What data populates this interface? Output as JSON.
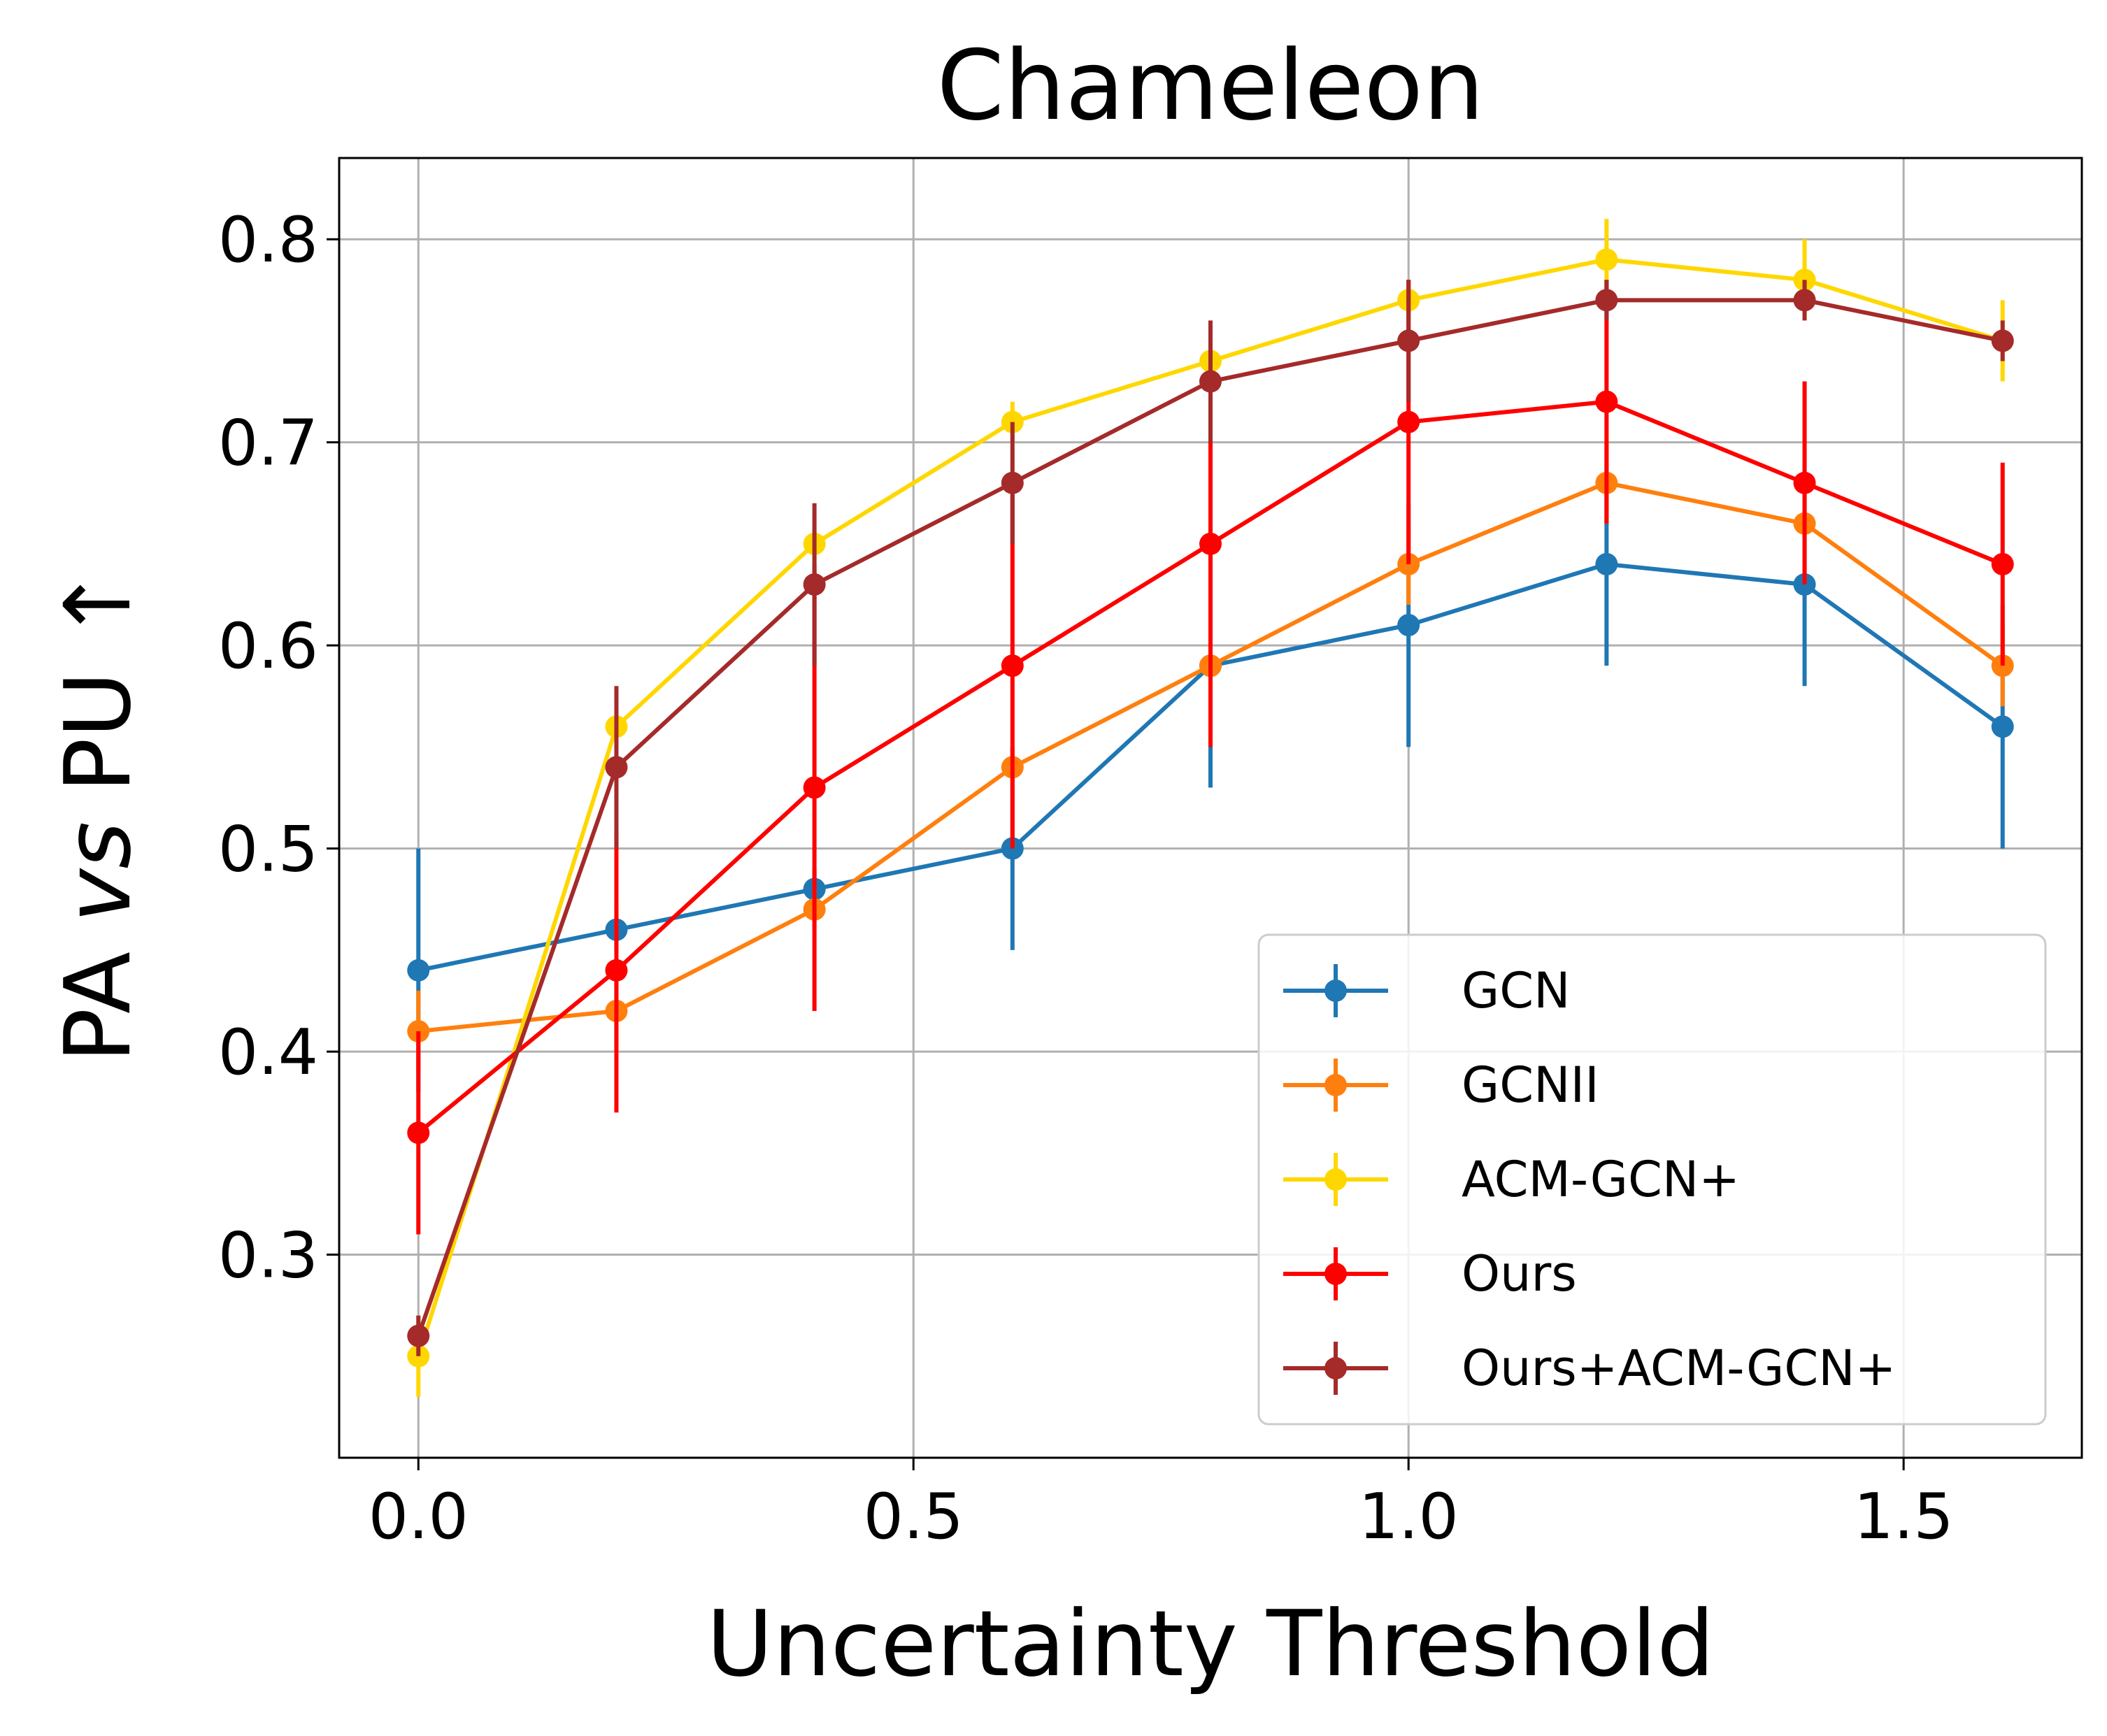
{
  "chart_data": {
    "type": "line",
    "title": "Chameleon",
    "xlabel": "Uncertainty Threshold",
    "ylabel": "PA vs PU ↑",
    "ylabel_parts": {
      "left": "PA ",
      "italic": "vs",
      "right": " PU ↑"
    },
    "xlim": [
      -0.08,
      1.68
    ],
    "ylim": [
      0.2,
      0.84
    ],
    "x_ticks": [
      0.0,
      0.5,
      1.0,
      1.5
    ],
    "x_tick_labels": [
      "0.0",
      "0.5",
      "1.0",
      "1.5"
    ],
    "y_ticks": [
      0.3,
      0.4,
      0.5,
      0.6,
      0.7,
      0.8
    ],
    "y_tick_labels": [
      "0.3",
      "0.4",
      "0.5",
      "0.6",
      "0.7",
      "0.8"
    ],
    "grid": true,
    "legend_position": "bottom-right",
    "x": [
      0.0,
      0.2,
      0.4,
      0.6,
      0.8,
      1.0,
      1.2,
      1.4,
      1.6
    ],
    "series": [
      {
        "name": "GCN",
        "color": "#1f77b4",
        "values": [
          0.44,
          0.46,
          0.48,
          0.5,
          0.59,
          0.61,
          0.64,
          0.63,
          0.56
        ],
        "errors": [
          0.06,
          0.01,
          0.01,
          0.05,
          0.06,
          0.06,
          0.05,
          0.05,
          0.06
        ]
      },
      {
        "name": "GCNII",
        "color": "#ff7f0e",
        "values": [
          0.41,
          0.42,
          0.47,
          0.54,
          0.59,
          0.64,
          0.68,
          0.66,
          0.59
        ],
        "errors": [
          0.02,
          0.02,
          0.01,
          0.01,
          0.01,
          0.02,
          0.02,
          0.02,
          0.02
        ]
      },
      {
        "name": "ACM-GCN+",
        "color": "#ffd700",
        "values": [
          0.25,
          0.56,
          0.65,
          0.71,
          0.74,
          0.77,
          0.79,
          0.78,
          0.75
        ],
        "errors": [
          0.02,
          0.01,
          0.01,
          0.01,
          0.01,
          0.01,
          0.02,
          0.02,
          0.02
        ]
      },
      {
        "name": "Ours",
        "color": "#ff0000",
        "values": [
          0.36,
          0.44,
          0.53,
          0.59,
          0.65,
          0.71,
          0.72,
          0.68,
          0.64
        ],
        "errors": [
          0.05,
          0.07,
          0.11,
          0.09,
          0.1,
          0.07,
          0.06,
          0.05,
          0.05
        ]
      },
      {
        "name": "Ours+ACM-GCN+",
        "color": "#a52a2a",
        "values": [
          0.26,
          0.54,
          0.63,
          0.68,
          0.73,
          0.75,
          0.77,
          0.77,
          0.75
        ],
        "errors": [
          0.01,
          0.04,
          0.04,
          0.03,
          0.03,
          0.03,
          0.01,
          0.01,
          0.01
        ]
      }
    ]
  }
}
